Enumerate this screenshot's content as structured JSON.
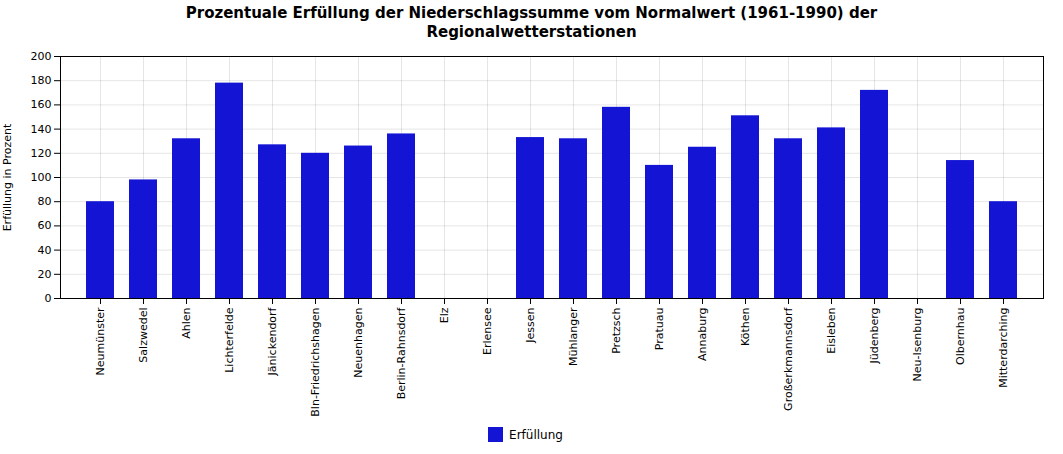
{
  "chart_data": {
    "type": "bar",
    "title": "Prozentuale Erfüllung der Niederschlagssumme vom Normalwert (1961-1990) der\nRegionalwetterstationen",
    "ylabel": "Erfüllung in Prozent",
    "categories": [
      "Neumünster",
      "Salzwedel",
      "Ahlen",
      "Lichterfelde",
      "Jänickendorf",
      "Bln-Friedrichshagen",
      "Neuenhagen",
      "Berlin-Rahnsdorf",
      "Elz",
      "Erlensee",
      "Jessen",
      "Mühlanger",
      "Pretzsch",
      "Pratuau",
      "Annaburg",
      "Köthen",
      "Großerkmannsdorf",
      "Eisleben",
      "Jüdenberg",
      "Neu-Isenburg",
      "Olbernhau",
      "Mitterdarching"
    ],
    "series": [
      {
        "name": "Erfüllung",
        "color": "#1414d4",
        "values": [
          80,
          98,
          132,
          178,
          127,
          120,
          126,
          136,
          0,
          0,
          133,
          132,
          158,
          110,
          125,
          151,
          132,
          141,
          172,
          0,
          114,
          80
        ]
      }
    ],
    "ylim": [
      0,
      200
    ],
    "yticks": [
      0,
      20,
      40,
      60,
      80,
      100,
      120,
      140,
      160,
      180,
      200
    ],
    "grid": true,
    "legend": "bottom"
  }
}
